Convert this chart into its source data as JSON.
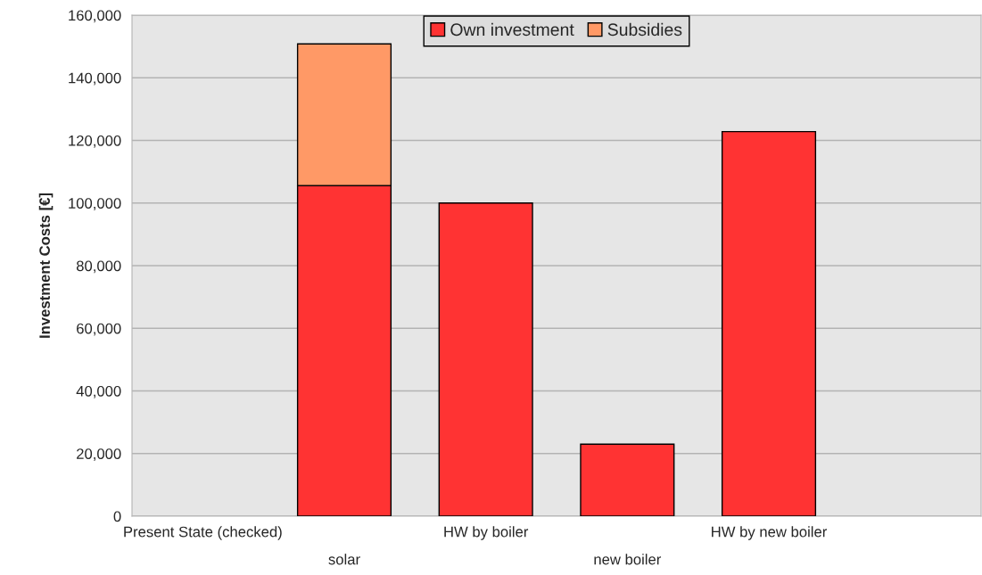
{
  "chart_data": {
    "type": "bar",
    "stacked": true,
    "ylabel": "Investment Costs [€]",
    "categories": [
      "Present State (checked)",
      "solar",
      "HW by boiler",
      "new boiler",
      "HW by new boiler",
      null
    ],
    "series": [
      {
        "name": "Own investment",
        "color": "#ff3333",
        "values": [
          null,
          105600,
          100000,
          23000,
          122800,
          null
        ]
      },
      {
        "name": "Subsidies",
        "color": "#ff9966",
        "values": [
          null,
          45200,
          null,
          null,
          null,
          null
        ]
      }
    ],
    "ylim": [
      0,
      160000
    ],
    "yticks": [
      {
        "value": 0,
        "label": "0"
      },
      {
        "value": 20000,
        "label": "20,000"
      },
      {
        "value": 40000,
        "label": "40,000"
      },
      {
        "value": 60000,
        "label": "60,000"
      },
      {
        "value": 80000,
        "label": "80,000"
      },
      {
        "value": 100000,
        "label": "100,000"
      },
      {
        "value": 120000,
        "label": "120,000"
      },
      {
        "value": 140000,
        "label": "140,000"
      },
      {
        "value": 160000,
        "label": "160,000"
      }
    ],
    "grid": "y",
    "legend": "top"
  }
}
